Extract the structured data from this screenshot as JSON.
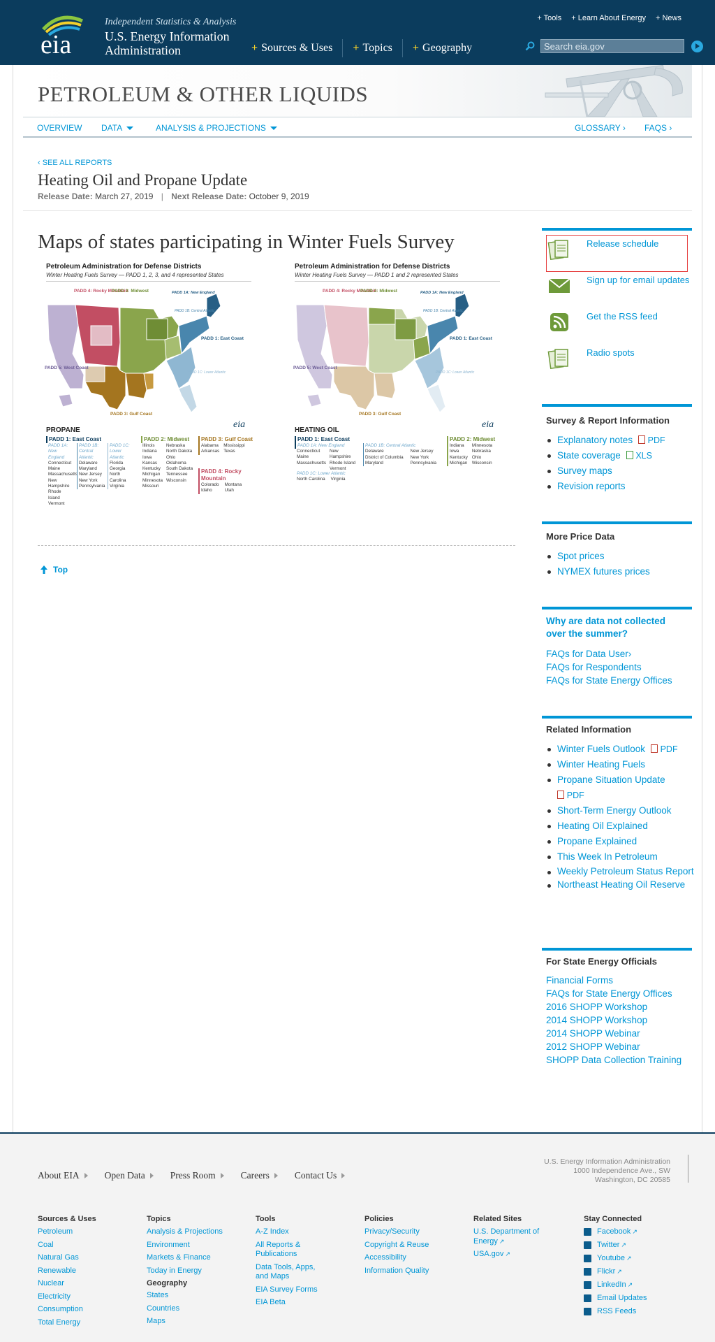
{
  "header": {
    "tagline": "Independent Statistics & Analysis",
    "org_name": "U.S. Energy Information Administration",
    "logo_text": "eia",
    "nav": [
      "Sources & Uses",
      "Topics",
      "Geography"
    ],
    "top_links": [
      "+ Tools",
      "+ Learn About Energy",
      "+ News"
    ],
    "search_placeholder": "Search eia.gov"
  },
  "banner": {
    "title": "PETROLEUM & OTHER LIQUIDS"
  },
  "subnav": {
    "overview": "OVERVIEW",
    "data": "DATA",
    "analysis": "ANALYSIS & PROJECTIONS",
    "glossary": "GLOSSARY ›",
    "faqs": "FAQS ›"
  },
  "report": {
    "see_all": "‹ SEE ALL REPORTS",
    "title": "Heating Oil and Propane Update",
    "release_label": "Release Date:",
    "release_date": "March 27, 2019",
    "next_label": "Next Release Date:",
    "next_date": "October 9, 2019"
  },
  "main": {
    "section_title": "Maps of states participating in Winter Fuels Survey",
    "top_link": "Top",
    "maps": [
      {
        "title": "Petroleum Administration for Defense Districts",
        "subtitle": "Winter Heating Fuels Survey — PADD 1, 2, 3, and 4 represented States",
        "fuel": "PROPANE",
        "eia": "eia",
        "labels": {
          "p4": "PADD 4: Rocky Mountain",
          "p2": "PADD 2: Midwest",
          "p1a": "PADD 1A: New England",
          "p1b": "PADD 1B: Central Atlantic",
          "p1": "PADD 1: East Coast",
          "p1c": "PADD 1C: Lower Atlantic",
          "p5": "PADD 5: West Coast",
          "p3": "PADD 3: Gulf Coast"
        },
        "legend": {
          "east_head": "PADD 1: East Coast",
          "ne_head": "PADD 1A: New England",
          "ne_states": [
            "Connecticut",
            "Maine",
            "Massachusetts",
            "New Hampshire",
            "Rhode Island",
            "Vermont"
          ],
          "ca_head": "PADD 1B: Central Atlantic",
          "ca_states": [
            "Delaware",
            "Maryland",
            "New Jersey",
            "New York",
            "Pennsylvania"
          ],
          "la_head": "PADD 1C: Lower Atlantic",
          "la_states": [
            "Florida",
            "Georgia",
            "North Carolina",
            "Virginia"
          ],
          "mw_head": "PADD 2: Midwest",
          "mw_states_a": [
            "Illinois",
            "Indiana",
            "Iowa",
            "Kansas",
            "Kentucky",
            "Michigan",
            "Minnesota",
            "Missouri"
          ],
          "mw_states_b": [
            "Nebraska",
            "North Dakota",
            "Ohio",
            "Oklahoma",
            "South Dakota",
            "Tennessee",
            "Wisconsin"
          ],
          "gc_head": "PADD 3: Gulf Coast",
          "gc_states_a": [
            "Alabama",
            "Arkansas"
          ],
          "gc_states_b": [
            "Mississippi",
            "Texas"
          ],
          "rm_head": "PADD 4: Rocky Mountain",
          "rm_states_a": [
            "Colorado",
            "Idaho"
          ],
          "rm_states_b": [
            "Montana",
            "Utah"
          ]
        }
      },
      {
        "title": "Petroleum Administration for Defense Districts",
        "subtitle": "Winter Heating Fuels Survey — PADD 1 and 2 represented States",
        "fuel": "HEATING OIL",
        "eia": "eia",
        "labels": {
          "p4": "PADD 4: Rocky Mountain",
          "p2": "PADD 2: Midwest",
          "p1a": "PADD 1A: New England",
          "p1b": "PADD 1B: Central Atlantic",
          "p1": "PADD 1: East Coast",
          "p1c": "PADD 1C: Lower Atlantic",
          "p5": "PADD 5: West Coast",
          "p3": "PADD 3: Gulf Coast"
        },
        "legend": {
          "east_head": "PADD 1: East Coast",
          "ne_head": "PADD 1A: New England",
          "ne_states_a": [
            "Connecticut",
            "Maine",
            "Massachusetts"
          ],
          "ne_states_b": [
            "New Hampshire",
            "Rhode Island",
            "Vermont"
          ],
          "ca_head": "PADD 1B: Central Atlantic",
          "ca_states_a": [
            "Delaware",
            "District of Columbia",
            "Maryland"
          ],
          "ca_states_b": [
            "New Jersey",
            "New York",
            "Pennsylvania"
          ],
          "la_head": "PADD 1C: Lower Atlantic",
          "la_states_a": [
            "North Carolina"
          ],
          "la_states_b": [
            "Virginia"
          ],
          "mw_head": "PADD 2: Midwest",
          "mw_states_a": [
            "Indiana",
            "Iowa",
            "Kentucky",
            "Michigan"
          ],
          "mw_states_b": [
            "Minnesota",
            "Nebraska",
            "Ohio",
            "Wisconsin"
          ]
        }
      }
    ]
  },
  "sidebar": {
    "resources": [
      "Release schedule",
      "Sign up for email updates",
      "Get the RSS feed",
      "Radio spots"
    ],
    "survey": {
      "head": "Survey & Report Information",
      "items": [
        "Explanatory notes",
        "State coverage",
        "Survey maps",
        "Revision reports"
      ],
      "pdf": "PDF",
      "xls": "XLS"
    },
    "price": {
      "head": "More Price Data",
      "items": [
        "Spot prices",
        "NYMEX futures prices"
      ]
    },
    "why": {
      "head": "Why are data not collected over the summer?",
      "items": [
        "FAQs for Data User›",
        "FAQs for Respondents",
        "FAQs for State Energy Offices"
      ]
    },
    "related": {
      "head": "Related Information",
      "items": [
        "Winter Fuels Outlook",
        "Winter Heating Fuels",
        "Propane Situation Update",
        "Short-Term Energy Outlook",
        "Heating Oil Explained",
        "Propane Explained",
        "This Week In Petroleum",
        "Weekly Petroleum Status Report",
        "Northeast Heating Oil Reserve"
      ],
      "pdf": "PDF"
    },
    "officials": {
      "head": "For State Energy Officials",
      "items": [
        "Financial Forms",
        "FAQs for State Energy Offices",
        "2016 SHOPP Workshop",
        "2014 SHOPP Workshop",
        "2014 SHOPP Webinar",
        "2012 SHOPP Webinar",
        "SHOPP Data Collection Training"
      ]
    }
  },
  "footer": {
    "nav": [
      "About EIA",
      "Open Data",
      "Press Room",
      "Careers",
      "Contact Us"
    ],
    "address": [
      "U.S. Energy Information Administration",
      "1000 Independence Ave., SW",
      "Washington, DC 20585"
    ],
    "cols": {
      "sources_head": "Sources & Uses",
      "sources": [
        "Petroleum",
        "Coal",
        "Natural Gas",
        "Renewable",
        "Nuclear",
        "Electricity",
        "Consumption",
        "Total Energy"
      ],
      "topics_head": "Topics",
      "topics": [
        "Analysis & Projections",
        "Environment",
        "Markets & Finance",
        "Today in Energy"
      ],
      "geo_head": "Geography",
      "geo": [
        "States",
        "Countries",
        "Maps"
      ],
      "tools_head": "Tools",
      "tools": [
        "A-Z Index",
        "All Reports & Publications",
        "Data Tools, Apps, and Maps",
        "EIA Survey Forms",
        "EIA Beta"
      ],
      "policies_head": "Policies",
      "policies": [
        "Privacy/Security",
        "Copyright & Reuse",
        "Accessibility",
        "Information Quality"
      ],
      "related_head": "Related Sites",
      "related": [
        "U.S. Department of Energy",
        "USA.gov"
      ],
      "stay_head": "Stay Connected",
      "stay": [
        "Facebook",
        "Twitter",
        "Youtube",
        "Flickr",
        "LinkedIn",
        "Email Updates",
        "RSS Feeds"
      ]
    }
  }
}
